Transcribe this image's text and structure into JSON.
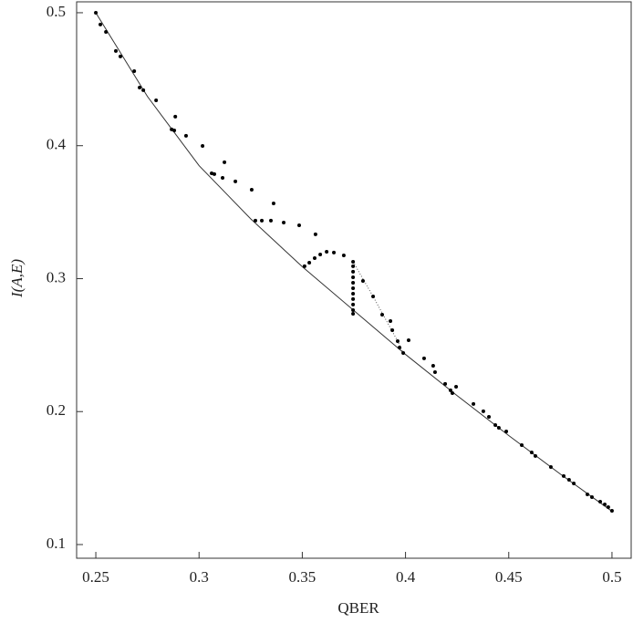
{
  "chart_data": {
    "type": "scatter",
    "x_label": "QBER",
    "y_label": "I(A,E)",
    "xlim": [
      0.2407,
      0.5093
    ],
    "ylim": [
      0.0897,
      0.5082
    ],
    "xticks": [
      0.25,
      0.3,
      0.35,
      0.4,
      0.45,
      0.5
    ],
    "yticks": [
      0.1,
      0.2,
      0.3,
      0.4,
      0.5
    ],
    "series": [
      {
        "type": "line",
        "color": "#333333",
        "x": [
          0.25,
          0.275,
          0.3,
          0.325,
          0.35,
          0.375,
          0.4,
          0.425,
          0.45,
          0.475,
          0.5
        ],
        "values": [
          0.5,
          0.437,
          0.385,
          0.345,
          0.309,
          0.276,
          0.243,
          0.212,
          0.182,
          0.153,
          0.125
        ]
      },
      {
        "type": "dotted-line",
        "color": "#555555",
        "x": [
          0.3746,
          0.3843,
          0.3962,
          0.3989
        ],
        "values": [
          0.3127,
          0.2866,
          0.253,
          0.2441
        ]
      },
      {
        "type": "scatter",
        "color": "#000000",
        "x": [
          0.25,
          0.2522,
          0.2549,
          0.2597,
          0.2619,
          0.2686,
          0.2712,
          0.273,
          0.2792,
          0.2867,
          0.2885,
          0.288,
          0.2937,
          0.3017,
          0.3061,
          0.3074,
          0.3114,
          0.3123,
          0.3176,
          0.3255,
          0.3273,
          0.3304,
          0.3348,
          0.3361,
          0.341,
          0.3485,
          0.3564,
          0.3511,
          0.3534,
          0.356,
          0.3587,
          0.3618,
          0.3653,
          0.3701,
          0.3746,
          0.3746,
          0.3746,
          0.3746,
          0.3746,
          0.3746,
          0.3746,
          0.3746,
          0.3746,
          0.3746,
          0.3746,
          0.3794,
          0.3843,
          0.3887,
          0.3927,
          0.3936,
          0.3962,
          0.3971,
          0.3989,
          0.4015,
          0.409,
          0.4134,
          0.4143,
          0.4192,
          0.4218,
          0.4227,
          0.4245,
          0.4329,
          0.4377,
          0.4404,
          0.4435,
          0.4452,
          0.4488,
          0.4563,
          0.4611,
          0.4629,
          0.4704,
          0.4766,
          0.4792,
          0.4815,
          0.4881,
          0.4903,
          0.4943,
          0.4965,
          0.4982,
          0.5
        ],
        "values": [
          0.5,
          0.4911,
          0.4856,
          0.4712,
          0.4671,
          0.4561,
          0.4437,
          0.4417,
          0.4341,
          0.4122,
          0.4218,
          0.4115,
          0.4074,
          0.3998,
          0.3792,
          0.3786,
          0.3758,
          0.3875,
          0.3731,
          0.3669,
          0.3436,
          0.3436,
          0.3436,
          0.3566,
          0.3422,
          0.3401,
          0.3333,
          0.3093,
          0.312,
          0.3154,
          0.3182,
          0.3202,
          0.3196,
          0.3175,
          0.3127,
          0.3093,
          0.3052,
          0.301,
          0.2969,
          0.2928,
          0.2887,
          0.2846,
          0.2805,
          0.2763,
          0.2736,
          0.2983,
          0.2866,
          0.2729,
          0.2681,
          0.2612,
          0.253,
          0.2482,
          0.2441,
          0.2537,
          0.24,
          0.2345,
          0.2297,
          0.2208,
          0.216,
          0.2139,
          0.2187,
          0.2057,
          0.2002,
          0.196,
          0.1899,
          0.1878,
          0.1851,
          0.1748,
          0.1693,
          0.1666,
          0.1583,
          0.1515,
          0.1487,
          0.146,
          0.1377,
          0.1357,
          0.1322,
          0.1302,
          0.1281,
          0.1254
        ]
      }
    ]
  }
}
